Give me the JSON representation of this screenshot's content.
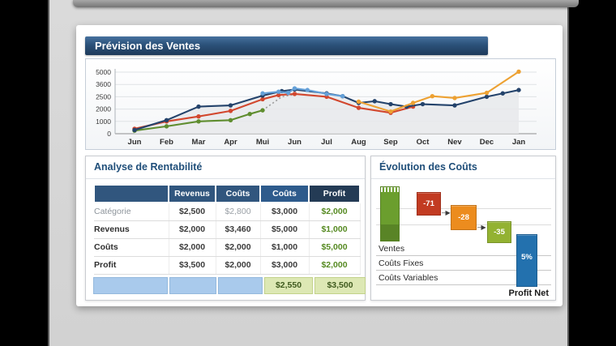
{
  "panels": {
    "sales_title": "Prévision des Ventes",
    "profit_title": "Analyse de Rentabilité",
    "costs_title": "Évolution des Coûts"
  },
  "table": {
    "headers": [
      "",
      "Revenus",
      "Coûts",
      "Coûts",
      "Profit"
    ],
    "rows": [
      {
        "label": "Catégorie",
        "values": [
          "$2,500",
          "$2,800",
          "$3,000",
          "$2,000"
        ]
      },
      {
        "label": "Revenus",
        "values": [
          "$2,000",
          "$3,460",
          "$5,000",
          "$1,000"
        ]
      },
      {
        "label": "Coûts",
        "values": [
          "$2,000",
          "$2,000",
          "$1,000",
          "$5,000"
        ]
      },
      {
        "label": "Profit",
        "values": [
          "$3,500",
          "$2,000",
          "$3,000",
          "$2,000"
        ]
      }
    ],
    "footer": {
      "subtotal": "$2,550",
      "total": "$3,500"
    }
  },
  "chart_data": [
    {
      "type": "line",
      "title": "Prévision des Ventes",
      "x_labels": [
        "Jun",
        "Feb",
        "Mar",
        "Apr",
        "Mui",
        "Jun",
        "Jul",
        "Aug",
        "Sep",
        "Oct",
        "Nev",
        "Dec",
        "Jan"
      ],
      "y_ticks": [
        0,
        1000,
        2000,
        2500,
        3600,
        5000
      ],
      "ylim": [
        0,
        5000
      ],
      "grid": true,
      "legend": false,
      "series": [
        {
          "name": "serie-navy",
          "color": "#24436b",
          "points": [
            [
              0,
              300
            ],
            [
              1,
              1100
            ],
            [
              2,
              2100
            ],
            [
              3,
              2150
            ],
            [
              4,
              2600
            ],
            [
              4.6,
              3000
            ],
            [
              5,
              3150
            ],
            [
              6,
              2800
            ],
            [
              6.5,
              2550
            ],
            [
              7,
              2250
            ],
            [
              7.5,
              2320
            ],
            [
              8,
              2200
            ],
            [
              8.5,
              2100
            ],
            [
              9,
              2200
            ],
            [
              10,
              2150
            ],
            [
              11,
              2500
            ],
            [
              11.5,
              2800
            ],
            [
              12,
              3100
            ]
          ]
        },
        {
          "name": "serie-red",
          "color": "#d2472e",
          "points": [
            [
              0,
              400
            ],
            [
              1,
              1000
            ],
            [
              2,
              1400
            ],
            [
              3,
              1850
            ],
            [
              4,
              2400
            ],
            [
              4.5,
              2650
            ],
            [
              5,
              2750
            ],
            [
              6,
              2500
            ],
            [
              7,
              2050
            ],
            [
              8,
              1700
            ],
            [
              8.7,
              2100
            ]
          ]
        },
        {
          "name": "serie-orange",
          "color": "#eda132",
          "points": [
            [
              7,
              2300
            ],
            [
              8,
              1800
            ],
            [
              8.7,
              2250
            ],
            [
              9.3,
              2550
            ],
            [
              10,
              2450
            ],
            [
              11,
              2850
            ],
            [
              12,
              5050
            ]
          ]
        },
        {
          "name": "serie-lightblue",
          "color": "#64a0d8",
          "points": [
            [
              4,
              2800
            ],
            [
              4.5,
              2950
            ],
            [
              4.8,
              2850
            ],
            [
              5,
              3250
            ],
            [
              5.4,
              3100
            ],
            [
              6,
              2750
            ],
            [
              6.5,
              2550
            ]
          ]
        },
        {
          "name": "serie-green",
          "color": "#5f8d2f",
          "points": [
            [
              0,
              250
            ],
            [
              1,
              600
            ],
            [
              2,
              1000
            ],
            [
              3,
              1100
            ],
            [
              3.6,
              1600
            ],
            [
              4,
              1900
            ]
          ]
        }
      ],
      "forecast_dotted": {
        "color": "#9b9b9b",
        "points": [
          [
            4,
            1900
          ],
          [
            4.6,
            2500
          ],
          [
            5,
            2700
          ]
        ]
      }
    },
    {
      "type": "waterfall",
      "title": "Évolution des Coûts",
      "bars": [
        {
          "name": "ventes-bar",
          "label": "",
          "color": "#6b9e2e"
        },
        {
          "name": "couts-fixes-bar",
          "label": "-71",
          "color": "#c23b22"
        },
        {
          "name": "couts-variables-bar",
          "label": "-28",
          "color": "#ec8c1e"
        },
        {
          "name": "marge-bar",
          "label": "-35",
          "color": "#93b232"
        },
        {
          "name": "profit-net-bar",
          "label": "5%",
          "color": "#2371ae"
        }
      ],
      "categories": [
        "Ventes",
        "Coûts Fixes",
        "Coûts Variables"
      ],
      "end_label": "Profit Net"
    }
  ],
  "colors": {
    "accent_navy": "#1f4e79",
    "titlebar_navy": "#2b5179",
    "table_header": "#31567e",
    "table_header_dark": "#243b55",
    "positive_green": "#568a22",
    "footer_blue": "#a9caec",
    "footer_green": "#dde8b4"
  }
}
